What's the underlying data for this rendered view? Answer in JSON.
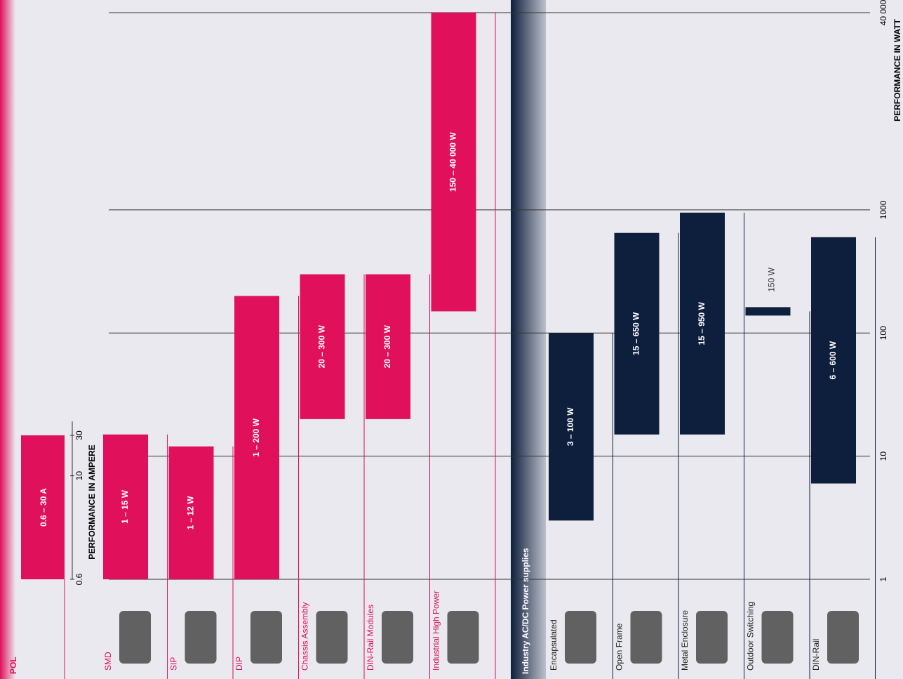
{
  "chart_data": [
    {
      "type": "range-bar",
      "axis_label": "PERFORMANCE IN AMPERE",
      "scale": "log",
      "ylim": [
        0.6,
        30
      ],
      "yticks": [
        0.6,
        10,
        30
      ],
      "series": [
        {
          "color": "#e0105a",
          "categories": [
            "POL"
          ],
          "low": [
            0.6
          ],
          "high": [
            30
          ],
          "value_labels": [
            "0.6 – 30 A"
          ]
        }
      ]
    },
    {
      "type": "range-bar",
      "axis_label": "PERFORMANCE IN WATT",
      "scale": "log",
      "ylim": [
        1,
        40000
      ],
      "yticks": [
        1,
        10,
        100,
        1000,
        {
          "value": 40000,
          "label": "40 000"
        }
      ],
      "grid": true,
      "series": [
        {
          "color": "#e0105a",
          "categories": [
            "SMD",
            "SIP",
            "DIP",
            "Chassis Assembly",
            "DIN-Rail Modules",
            "Industrial High Power"
          ],
          "low": [
            1,
            1,
            1,
            20,
            20,
            150
          ],
          "high": [
            15,
            12,
            200,
            300,
            300,
            40000
          ],
          "value_labels": [
            "1 – 15 W",
            "1 – 12 W",
            "1 – 200 W",
            "20 – 300 W",
            "20 – 300 W",
            "150 – 40 000 W"
          ]
        },
        {
          "name": "Industry AC/DC Power supplies",
          "color": "#0d1f3c",
          "categories": [
            "Encapsulated",
            "Open Frame",
            "Metal Enclosure",
            "Outdoor Switching",
            "DIN-Rail"
          ],
          "low": [
            3,
            15,
            15,
            150,
            6
          ],
          "high": [
            100,
            650,
            950,
            150,
            600
          ],
          "value_labels": [
            "3 – 100 W",
            "15 – 650 W",
            "15 – 950 W",
            "150 W",
            "6 – 600 W"
          ]
        }
      ]
    }
  ]
}
